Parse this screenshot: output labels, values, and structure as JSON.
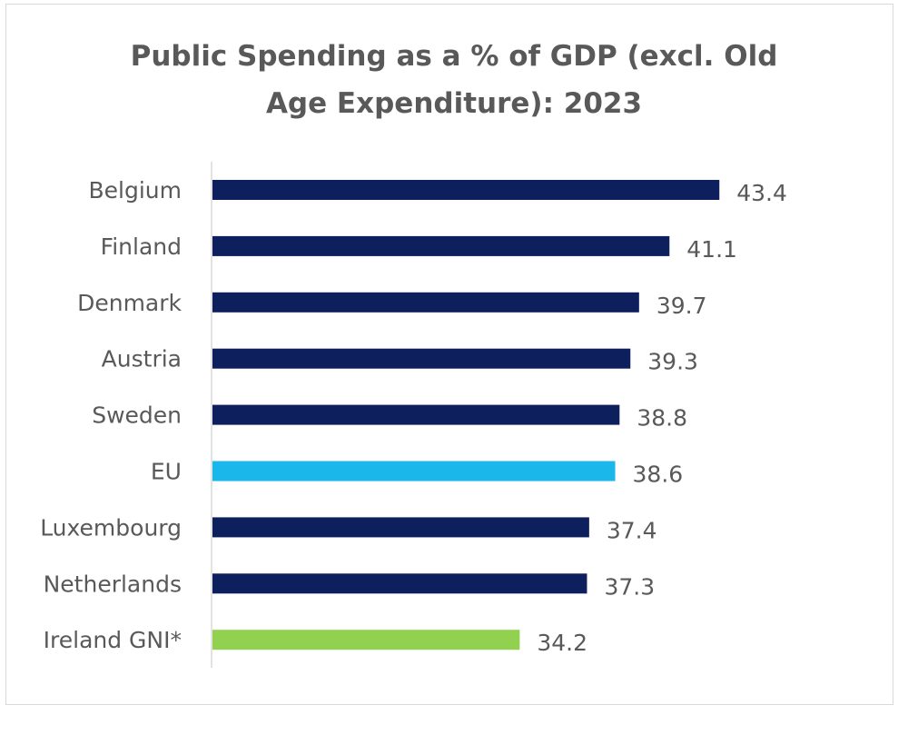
{
  "chart_data": {
    "type": "bar",
    "orientation": "horizontal",
    "title": [
      "Public Spending as a % of GDP (excl. Old",
      "Age Expenditure):  2023"
    ],
    "categories": [
      "Belgium",
      "Finland",
      "Denmark",
      "Austria",
      "Sweden",
      "EU",
      "Luxembourg",
      "Netherlands",
      "Ireland GNI*"
    ],
    "values": [
      43.4,
      41.1,
      39.7,
      39.3,
      38.8,
      38.6,
      37.4,
      37.3,
      34.2
    ],
    "value_labels": [
      "43.4",
      "41.1",
      "39.7",
      "39.3",
      "38.8",
      "38.6",
      "37.4",
      "37.3",
      "34.2"
    ],
    "colors": [
      "#0d1f5c",
      "#0d1f5c",
      "#0d1f5c",
      "#0d1f5c",
      "#0d1f5c",
      "#1ab7ea",
      "#0d1f5c",
      "#0d1f5c",
      "#92d050"
    ],
    "xlim": [
      20,
      45
    ],
    "grid": false,
    "legend": "none",
    "xlabel": "",
    "ylabel": ""
  }
}
